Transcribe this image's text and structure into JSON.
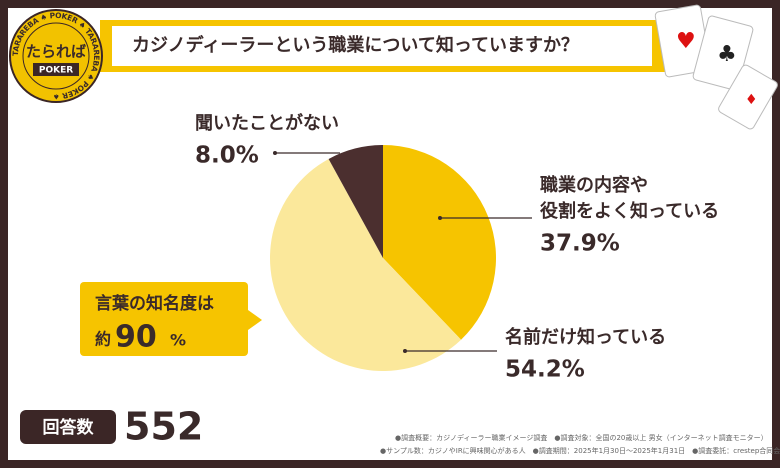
{
  "chart_data": {
    "type": "pie",
    "title": "カジノディーラーという職業について知っていますか？",
    "categories": [
      [
        "職業の内容や",
        "役割をよく知っている"
      ],
      [
        "名前だけ知っている"
      ],
      [
        "聞いたことがない"
      ]
    ],
    "values": [
      37.9,
      54.2,
      8.0
    ],
    "value_labels": [
      "37.9%",
      "54.2%",
      "8.0%"
    ],
    "colors": [
      "#f6c400",
      "#fbe89b",
      "#4b2f2f"
    ]
  },
  "logo": {
    "main": "たられば",
    "sub": "POKER",
    "ring": "TARAREBA ♠ POKER ♠ TARAREBA ♠ POKER ♠"
  },
  "callout": {
    "line1": "言葉の知名度は",
    "prefix": "約",
    "value": "90",
    "unit": "%"
  },
  "respondents": {
    "label": "回答数",
    "count": "552"
  },
  "notes": [
    "●調査概要：カジノディーラー職業イメージ調査　●調査対象：全国の20歳以上 男女（インターネット調査モニター）",
    "●サンプル数：カジノやIRに興味関心がある人　●調査期間：2025年1月30日〜2025年1月31日　●調査委託：crestep合同会社"
  ]
}
